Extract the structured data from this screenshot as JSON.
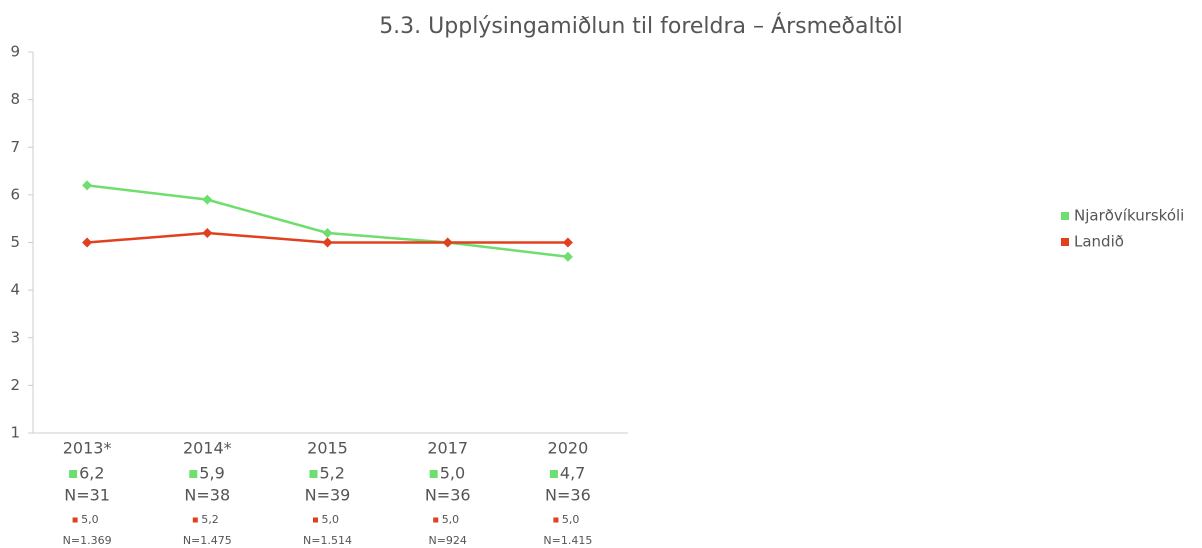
{
  "chart_data": {
    "type": "line",
    "title": "5.3. Upplýsingamiðlun til foreldra – Ársmeðaltöl",
    "categories": [
      "2013*",
      "2014*",
      "2015",
      "2017",
      "2020"
    ],
    "series": [
      {
        "name": "Njarðvíkurskóli",
        "color": "#6ede6e",
        "values": [
          6.2,
          5.9,
          5.2,
          5.0,
          4.7
        ],
        "value_labels": [
          "6,2",
          "5,9",
          "5,2",
          "5,0",
          "4,7"
        ],
        "n_labels": [
          "N=31",
          "N=38",
          "N=39",
          "N=36",
          "N=36"
        ]
      },
      {
        "name": "Landið",
        "color": "#e0401e",
        "values": [
          5.0,
          5.2,
          5.0,
          5.0,
          5.0
        ],
        "value_labels": [
          "5,0",
          "5,2",
          "5,0",
          "5,0",
          "5,0"
        ],
        "n_labels": [
          "N=1.369",
          "N=1.475",
          "N=1.514",
          "N=924",
          "N=1.415"
        ]
      }
    ],
    "ylim": [
      1,
      9
    ],
    "yticks": [
      1,
      2,
      3,
      4,
      5,
      6,
      7,
      8,
      9
    ],
    "grid": false,
    "legend": "right"
  }
}
